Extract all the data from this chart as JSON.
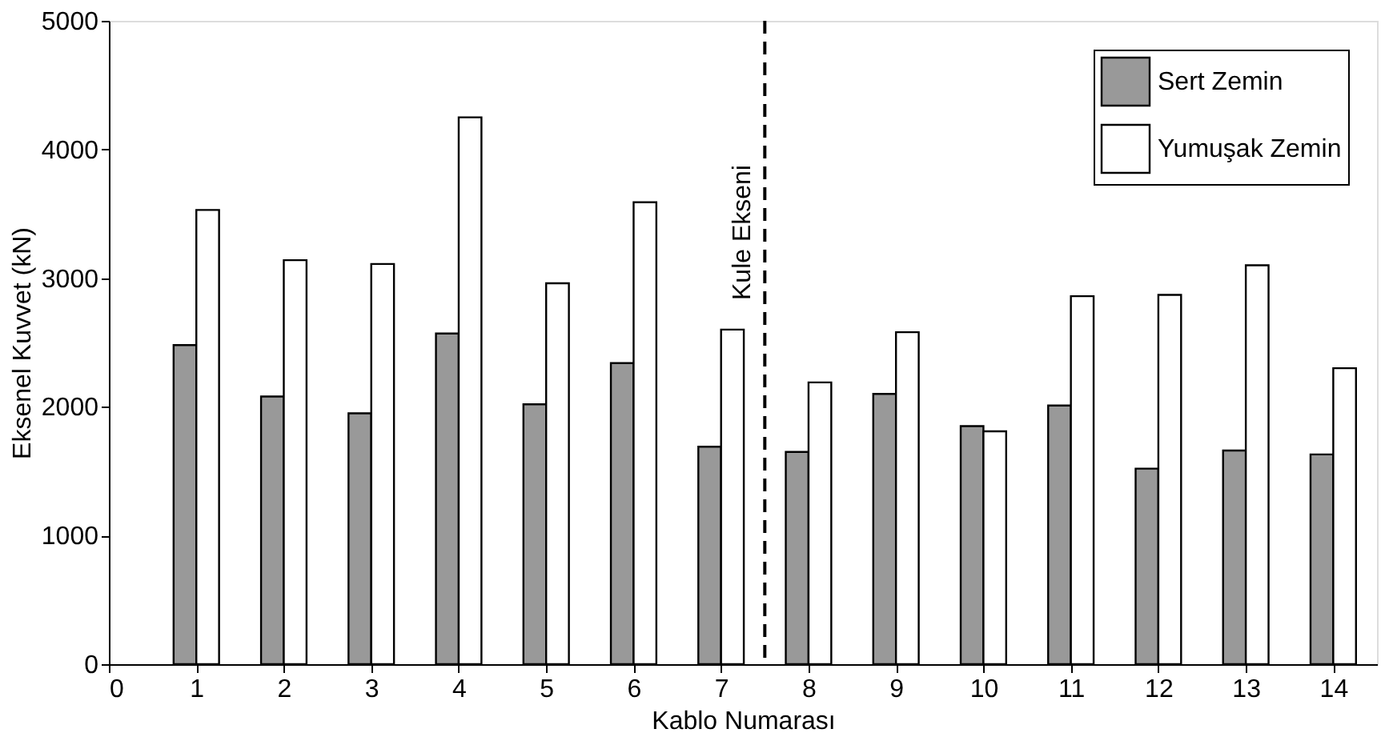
{
  "chart_data": {
    "type": "bar",
    "xlabel": "Kablo Numarası",
    "ylabel": "Eksenel Kuvvet (kN)",
    "x": [
      1,
      2,
      3,
      4,
      5,
      6,
      7,
      8,
      9,
      10,
      11,
      12,
      13,
      14
    ],
    "series": [
      {
        "name": "Sert Zemin",
        "color": "#999999",
        "values": [
          2480,
          2080,
          1950,
          2570,
          2020,
          2340,
          1690,
          1650,
          2100,
          1850,
          2010,
          1520,
          1660,
          1630
        ]
      },
      {
        "name": "Yumuşak Zemin",
        "color": "#ffffff",
        "values": [
          3530,
          3140,
          3110,
          4250,
          2960,
          3590,
          2600,
          2190,
          2580,
          1810,
          2860,
          2870,
          3100,
          2300
        ]
      }
    ],
    "xlim": [
      0,
      14.5
    ],
    "xticks": [
      0,
      1,
      2,
      3,
      4,
      5,
      6,
      7,
      8,
      9,
      10,
      11,
      12,
      13,
      14
    ],
    "ylim": [
      0,
      5000
    ],
    "yticks": [
      0,
      1000,
      2000,
      3000,
      4000,
      5000
    ],
    "ref_lines": [
      {
        "axis": "x",
        "value": 7.5,
        "label": "Kule Ekseni",
        "line_style": "dashed",
        "color": "#000000"
      }
    ],
    "grid": false,
    "legend": "top right"
  }
}
